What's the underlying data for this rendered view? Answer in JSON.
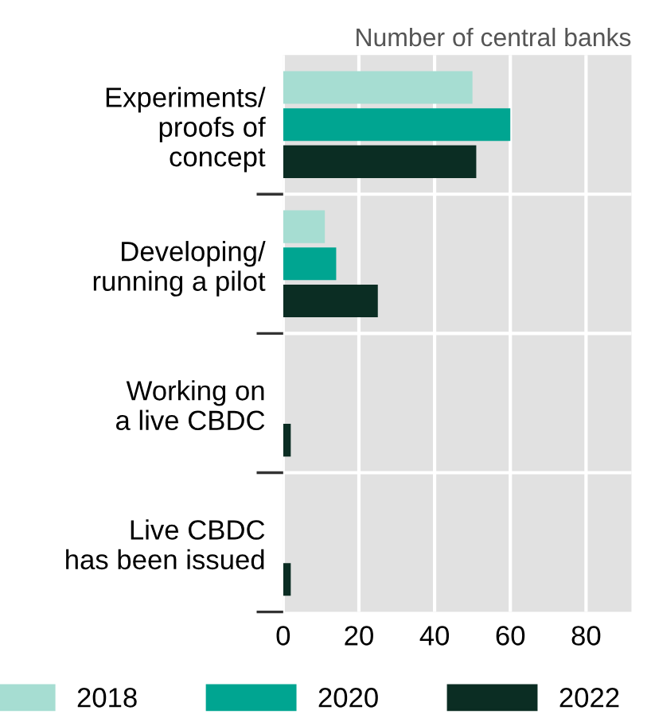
{
  "chart_data": {
    "type": "bar",
    "orientation": "horizontal",
    "title": "Number of central banks",
    "categories": [
      "Experiments/\nproofs of\nconcept",
      "Developing/\nrunning a pilot",
      "Working on\na live CBDC",
      "Live CBDC\nhas been issued"
    ],
    "series": [
      {
        "name": "2018",
        "color": "#a6ddd2",
        "values": [
          50,
          11,
          0,
          0
        ]
      },
      {
        "name": "2020",
        "color": "#00a591",
        "values": [
          60,
          14,
          0,
          0
        ]
      },
      {
        "name": "2022",
        "color": "#0b2d23",
        "values": [
          51,
          25,
          2,
          2
        ]
      }
    ],
    "xlim": [
      0,
      92
    ],
    "xticks": [
      0,
      20,
      40,
      60,
      80
    ],
    "grid": "x",
    "legend": "bottom"
  }
}
